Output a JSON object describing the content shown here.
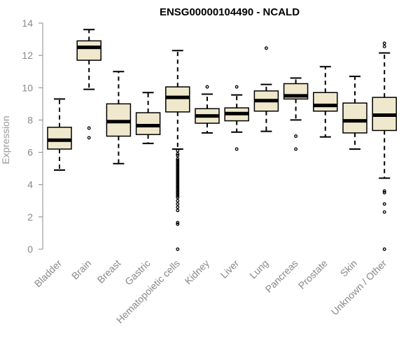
{
  "chart_data": {
    "type": "box",
    "title": "ENSG00000104490 - NCALD",
    "xlabel": "",
    "ylabel": "Expression",
    "ylim": [
      0,
      14
    ],
    "yticks": [
      0,
      2,
      4,
      6,
      8,
      10,
      12,
      14
    ],
    "grid": false,
    "colors": {
      "box_fill": "#efe8cc",
      "stroke": "#000000",
      "axis": "#888888"
    },
    "categories": [
      "Bladder",
      "Brain",
      "Breast",
      "Gastric",
      "Hematopoietic cells",
      "Kidney",
      "Liver",
      "Lung",
      "Pancreas",
      "Prostate",
      "Skin",
      "Unknown / Other"
    ],
    "boxes": [
      {
        "name": "Bladder",
        "whisker_low": 4.9,
        "q1": 6.2,
        "median": 6.75,
        "q3": 7.55,
        "whisker_high": 9.3,
        "outliers": []
      },
      {
        "name": "Brain",
        "whisker_low": 9.9,
        "q1": 11.7,
        "median": 12.5,
        "q3": 12.9,
        "whisker_high": 13.6,
        "outliers": [
          7.5,
          6.9
        ]
      },
      {
        "name": "Breast",
        "whisker_low": 5.3,
        "q1": 7.0,
        "median": 7.9,
        "q3": 9.0,
        "whisker_high": 11.0,
        "outliers": []
      },
      {
        "name": "Gastric",
        "whisker_low": 6.55,
        "q1": 7.1,
        "median": 7.65,
        "q3": 8.45,
        "whisker_high": 9.7,
        "outliers": []
      },
      {
        "name": "Hematopoietic cells",
        "whisker_low": 6.2,
        "q1": 8.5,
        "median": 9.4,
        "q3": 10.05,
        "whisker_high": 12.3,
        "outliers": [
          6.1,
          5.9,
          5.8,
          5.6,
          5.5,
          5.4,
          5.3,
          5.2,
          5.1,
          5.0,
          4.9,
          4.8,
          4.7,
          4.6,
          4.5,
          4.4,
          4.3,
          4.2,
          4.1,
          4.0,
          3.9,
          3.8,
          3.7,
          3.6,
          3.5,
          3.4,
          3.3,
          3.2,
          3.0,
          2.8,
          2.6,
          2.4,
          1.65,
          1.55,
          0.0
        ]
      },
      {
        "name": "Kidney",
        "whisker_low": 7.2,
        "q1": 7.8,
        "median": 8.25,
        "q3": 8.7,
        "whisker_high": 9.6,
        "outliers": [
          10.05
        ]
      },
      {
        "name": "Liver",
        "whisker_low": 7.25,
        "q1": 7.95,
        "median": 8.4,
        "q3": 8.75,
        "whisker_high": 9.55,
        "outliers": [
          10.05,
          6.2
        ]
      },
      {
        "name": "Lung",
        "whisker_low": 7.3,
        "q1": 8.55,
        "median": 9.2,
        "q3": 9.8,
        "whisker_high": 10.2,
        "outliers": [
          12.45
        ]
      },
      {
        "name": "Pancreas",
        "whisker_low": 8.0,
        "q1": 9.3,
        "median": 9.5,
        "q3": 10.25,
        "whisker_high": 10.6,
        "outliers": [
          7.0,
          6.2
        ]
      },
      {
        "name": "Prostate",
        "whisker_low": 6.95,
        "q1": 8.55,
        "median": 8.9,
        "q3": 9.7,
        "whisker_high": 11.3,
        "outliers": []
      },
      {
        "name": "Skin",
        "whisker_low": 6.2,
        "q1": 7.2,
        "median": 7.95,
        "q3": 9.05,
        "whisker_high": 10.7,
        "outliers": []
      },
      {
        "name": "Unknown / Other",
        "whisker_low": 4.4,
        "q1": 7.35,
        "median": 8.3,
        "q3": 9.4,
        "whisker_high": 12.15,
        "outliers": [
          12.75,
          12.55,
          3.6,
          3.5,
          2.8,
          2.3,
          0.0
        ]
      }
    ]
  }
}
